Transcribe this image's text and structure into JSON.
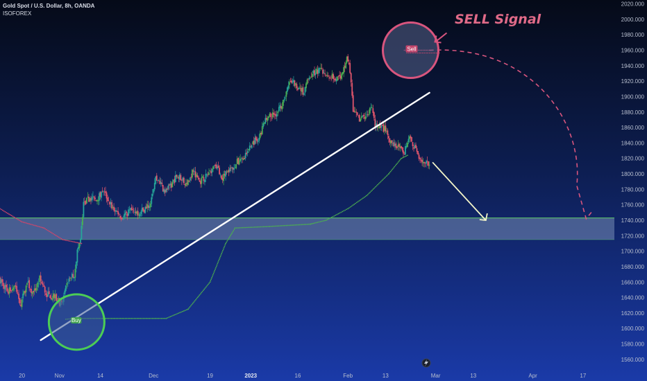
{
  "header": {
    "title": "Gold Spot / U.S. Dollar, 8h, OANDA",
    "source": "ISOFOREX"
  },
  "annotations": {
    "sell_signal_title": "SELL Signal",
    "sell_tag": "Sell",
    "buy_tag": "Buy"
  },
  "colors": {
    "bull": "#26a69a",
    "bull_bright": "#4caf50",
    "bear": "#e0556b",
    "trailing_stop_green": "#4caf50",
    "trailing_stop_red": "#d4456a",
    "trendline": "#ffffff",
    "sell_circle": "#d8557e",
    "buy_circle": "#4ccd55",
    "zone": "#8ea3c6",
    "arrow_yellow": "#f3f5c9"
  },
  "chart_data": {
    "type": "candlestick",
    "y_axis": {
      "ylim": [
        1550,
        2025
      ],
      "ticks": [
        2020,
        2000,
        1980,
        1960,
        1940,
        1920,
        1900,
        1880,
        1860,
        1840,
        1820,
        1800,
        1780,
        1760,
        1740,
        1720,
        1700,
        1680,
        1660,
        1640,
        1620,
        1600,
        1580,
        1560
      ],
      "tick_labels": [
        "2020.000",
        "2000.000",
        "1980.000",
        "1960.000",
        "1940.000",
        "1920.000",
        "1900.000",
        "1880.000",
        "1860.000",
        "1840.000",
        "1820.000",
        "1800.000",
        "1780.000",
        "1760.000",
        "1740.000",
        "1720.000",
        "1700.000",
        "1680.000",
        "1660.000",
        "1640.000",
        "1620.000",
        "1600.000",
        "1580.000",
        "1560.000"
      ],
      "position": "right"
    },
    "x_axis": {
      "xlim": [
        "2022-10-13",
        "2023-04-27"
      ],
      "ticks": [
        {
          "date": "2022-10-20",
          "label": "20",
          "bold": false
        },
        {
          "date": "2022-11-01",
          "label": "Nov",
          "bold": false
        },
        {
          "date": "2022-11-14",
          "label": "14",
          "bold": false
        },
        {
          "date": "2022-12-01",
          "label": "Dec",
          "bold": false
        },
        {
          "date": "2022-12-19",
          "label": "19",
          "bold": false
        },
        {
          "date": "2023-01-01",
          "label": "2023",
          "bold": true
        },
        {
          "date": "2023-01-16",
          "label": "16",
          "bold": false
        },
        {
          "date": "2023-02-01",
          "label": "Feb",
          "bold": false
        },
        {
          "date": "2023-02-13",
          "label": "13",
          "bold": false
        },
        {
          "date": "2023-03-01",
          "label": "Mar",
          "bold": false
        },
        {
          "date": "2023-03-13",
          "label": "13",
          "bold": false
        },
        {
          "date": "2023-04-01",
          "label": "Apr",
          "bold": false
        },
        {
          "date": "2023-04-17",
          "label": "17",
          "bold": false
        }
      ]
    },
    "price_path": [
      [
        "2022-10-13",
        1665
      ],
      [
        "2022-10-16",
        1648
      ],
      [
        "2022-10-18",
        1655
      ],
      [
        "2022-10-20",
        1632
      ],
      [
        "2022-10-22",
        1660
      ],
      [
        "2022-10-24",
        1645
      ],
      [
        "2022-10-26",
        1665
      ],
      [
        "2022-10-28",
        1645
      ],
      [
        "2022-10-31",
        1640
      ],
      [
        "2022-11-02",
        1630
      ],
      [
        "2022-11-04",
        1662
      ],
      [
        "2022-11-06",
        1670
      ],
      [
        "2022-11-07",
        1700
      ],
      [
        "2022-11-08",
        1715
      ],
      [
        "2022-11-09",
        1760
      ],
      [
        "2022-11-11",
        1770
      ],
      [
        "2022-11-13",
        1765
      ],
      [
        "2022-11-15",
        1780
      ],
      [
        "2022-11-18",
        1758
      ],
      [
        "2022-11-21",
        1745
      ],
      [
        "2022-11-24",
        1752
      ],
      [
        "2022-11-27",
        1750
      ],
      [
        "2022-11-30",
        1760
      ],
      [
        "2022-12-02",
        1795
      ],
      [
        "2022-12-05",
        1778
      ],
      [
        "2022-12-07",
        1785
      ],
      [
        "2022-12-09",
        1800
      ],
      [
        "2022-12-12",
        1785
      ],
      [
        "2022-12-14",
        1805
      ],
      [
        "2022-12-16",
        1790
      ],
      [
        "2022-12-19",
        1800
      ],
      [
        "2022-12-21",
        1815
      ],
      [
        "2022-12-23",
        1795
      ],
      [
        "2022-12-26",
        1805
      ],
      [
        "2022-12-28",
        1815
      ],
      [
        "2022-12-30",
        1818
      ],
      [
        "2023-01-02",
        1840
      ],
      [
        "2023-01-04",
        1848
      ],
      [
        "2023-01-06",
        1870
      ],
      [
        "2023-01-08",
        1875
      ],
      [
        "2023-01-10",
        1880
      ],
      [
        "2023-01-12",
        1898
      ],
      [
        "2023-01-14",
        1920
      ],
      [
        "2023-01-16",
        1915
      ],
      [
        "2023-01-18",
        1905
      ],
      [
        "2023-01-20",
        1925
      ],
      [
        "2023-01-22",
        1932
      ],
      [
        "2023-01-24",
        1935
      ],
      [
        "2023-01-26",
        1928
      ],
      [
        "2023-01-28",
        1925
      ],
      [
        "2023-01-30",
        1922
      ],
      [
        "2023-02-01",
        1950
      ],
      [
        "2023-02-02",
        1935
      ],
      [
        "2023-02-03",
        1880
      ],
      [
        "2023-02-05",
        1870
      ],
      [
        "2023-02-07",
        1875
      ],
      [
        "2023-02-09",
        1885
      ],
      [
        "2023-02-10",
        1862
      ],
      [
        "2023-02-13",
        1858
      ],
      [
        "2023-02-15",
        1840
      ],
      [
        "2023-02-17",
        1838
      ],
      [
        "2023-02-19",
        1825
      ],
      [
        "2023-02-21",
        1845
      ],
      [
        "2023-02-23",
        1830
      ],
      [
        "2023-02-25",
        1817
      ],
      [
        "2023-02-27",
        1811
      ]
    ],
    "trailing_stop": [
      {
        "color": "red",
        "points": [
          [
            "2022-10-13",
            1755
          ],
          [
            "2022-10-20",
            1738
          ],
          [
            "2022-10-27",
            1730
          ],
          [
            "2022-11-02",
            1715
          ],
          [
            "2022-11-08",
            1710
          ]
        ]
      },
      {
        "color": "green",
        "points": [
          [
            "2022-11-03",
            1612
          ],
          [
            "2022-11-06",
            1613
          ],
          [
            "2022-12-05",
            1613
          ],
          [
            "2022-12-12",
            1625
          ],
          [
            "2022-12-19",
            1660
          ],
          [
            "2022-12-24",
            1710
          ],
          [
            "2022-12-27",
            1730
          ],
          [
            "2023-01-07",
            1732
          ],
          [
            "2023-01-20",
            1735
          ],
          [
            "2023-01-25",
            1740
          ],
          [
            "2023-02-01",
            1755
          ],
          [
            "2023-02-07",
            1772
          ],
          [
            "2023-02-14",
            1800
          ],
          [
            "2023-02-18",
            1820
          ],
          [
            "2023-02-20",
            1824
          ]
        ]
      },
      {
        "color": "red",
        "points": [
          [
            "2023-02-19",
            1960
          ],
          [
            "2023-02-27",
            1960
          ]
        ]
      }
    ],
    "resistance_zone": [
      1715,
      1743
    ],
    "trendline": [
      [
        "2022-10-26",
        1585
      ],
      [
        "2023-02-27",
        1905
      ]
    ],
    "yellow_arrow": [
      [
        "2023-02-28",
        1815
      ],
      [
        "2023-03-17",
        1740
      ]
    ],
    "dashed_projection": [
      [
        "2023-02-27",
        1960
      ],
      [
        "2023-04-15",
        1785
      ],
      [
        "2023-04-18",
        1742
      ],
      [
        "2023-04-20",
        1752
      ]
    ],
    "sell_marker": {
      "date": "2023-02-21",
      "price": 1960
    },
    "buy_marker": {
      "date": "2022-11-06",
      "price": 1612
    }
  }
}
